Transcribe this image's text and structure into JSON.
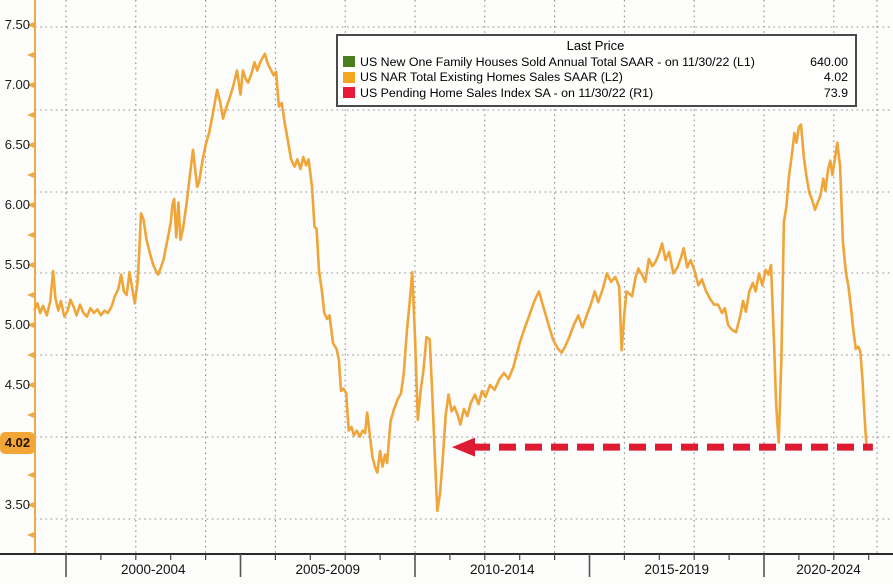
{
  "legend": {
    "title": "Last Price",
    "entries": [
      {
        "label": "US New One Family Houses Sold Annual Total SAAR -  on 11/30/22  (L1)",
        "value": "640.00",
        "color": "#4a7d1d"
      },
      {
        "label": "US NAR Total Existing Homes Sales SAAR  (L2)",
        "value": "4.02",
        "color": "#f2a71e"
      },
      {
        "label": "US Pending Home Sales Index SA -  on 11/30/22  (R1)",
        "value": "73.9",
        "color": "#e9173a"
      }
    ]
  },
  "y_axis": {
    "labels": [
      {
        "text": "7.50",
        "v": 7.5
      },
      {
        "text": "7.00",
        "v": 7.0
      },
      {
        "text": "6.50",
        "v": 6.5
      },
      {
        "text": "6.00",
        "v": 6.0
      },
      {
        "text": "5.50",
        "v": 5.5
      },
      {
        "text": "5.00",
        "v": 5.0
      },
      {
        "text": "4.50",
        "v": 4.5
      },
      {
        "text": "3.50",
        "v": 3.5
      }
    ],
    "last_price_badge": {
      "text": "4.02",
      "v": 4.02
    }
  },
  "x_axis": {
    "groups": [
      {
        "text": "2000-2004",
        "start": 2000,
        "end": 2005
      },
      {
        "text": "2005-2009",
        "start": 2005,
        "end": 2010
      },
      {
        "text": "2010-2014",
        "start": 2010,
        "end": 2015
      },
      {
        "text": "2015-2019",
        "start": 2015,
        "end": 2020
      },
      {
        "text": "2020-2024",
        "start": 2020,
        "end": 2025
      }
    ]
  },
  "chart_data": {
    "type": "line",
    "title": "",
    "x_range": [
      1999.05,
      2023.7
    ],
    "left_axis_range": [
      3.25,
      7.75
    ],
    "grid": true,
    "legend_position": "top",
    "series": [
      {
        "name": "US NAR Total Existing Homes Sales SAAR (L2)",
        "axis": "L2",
        "color": "#f0a539",
        "last_value": 4.02,
        "points": [
          [
            1999.1,
            5.13
          ],
          [
            1999.18,
            5.18
          ],
          [
            1999.26,
            5.1
          ],
          [
            1999.34,
            5.16
          ],
          [
            1999.45,
            5.08
          ],
          [
            1999.55,
            5.2
          ],
          [
            1999.63,
            5.45
          ],
          [
            1999.7,
            5.22
          ],
          [
            1999.78,
            5.12
          ],
          [
            1999.85,
            5.2
          ],
          [
            1999.95,
            5.07
          ],
          [
            2000.05,
            5.12
          ],
          [
            2000.13,
            5.21
          ],
          [
            2000.22,
            5.15
          ],
          [
            2000.3,
            5.08
          ],
          [
            2000.4,
            5.17
          ],
          [
            2000.5,
            5.1
          ],
          [
            2000.6,
            5.07
          ],
          [
            2000.7,
            5.14
          ],
          [
            2000.8,
            5.1
          ],
          [
            2000.9,
            5.13
          ],
          [
            2001.0,
            5.08
          ],
          [
            2001.1,
            5.12
          ],
          [
            2001.2,
            5.1
          ],
          [
            2001.3,
            5.15
          ],
          [
            2001.4,
            5.24
          ],
          [
            2001.5,
            5.3
          ],
          [
            2001.58,
            5.42
          ],
          [
            2001.66,
            5.28
          ],
          [
            2001.74,
            5.25
          ],
          [
            2001.82,
            5.44
          ],
          [
            2001.9,
            5.3
          ],
          [
            2001.97,
            5.18
          ],
          [
            2002.05,
            5.35
          ],
          [
            2002.1,
            5.62
          ],
          [
            2002.15,
            5.93
          ],
          [
            2002.22,
            5.88
          ],
          [
            2002.3,
            5.72
          ],
          [
            2002.4,
            5.6
          ],
          [
            2002.5,
            5.5
          ],
          [
            2002.58,
            5.45
          ],
          [
            2002.64,
            5.42
          ],
          [
            2002.72,
            5.48
          ],
          [
            2002.8,
            5.55
          ],
          [
            2002.9,
            5.7
          ],
          [
            2003.0,
            5.85
          ],
          [
            2003.05,
            6.0
          ],
          [
            2003.1,
            6.05
          ],
          [
            2003.16,
            5.73
          ],
          [
            2003.22,
            6.02
          ],
          [
            2003.28,
            5.71
          ],
          [
            2003.35,
            5.8
          ],
          [
            2003.45,
            6.0
          ],
          [
            2003.55,
            6.25
          ],
          [
            2003.64,
            6.46
          ],
          [
            2003.7,
            6.3
          ],
          [
            2003.76,
            6.15
          ],
          [
            2003.82,
            6.2
          ],
          [
            2003.9,
            6.35
          ],
          [
            2004.0,
            6.5
          ],
          [
            2004.1,
            6.6
          ],
          [
            2004.2,
            6.75
          ],
          [
            2004.33,
            6.96
          ],
          [
            2004.42,
            6.85
          ],
          [
            2004.5,
            6.72
          ],
          [
            2004.58,
            6.8
          ],
          [
            2004.7,
            6.9
          ],
          [
            2004.8,
            7.0
          ],
          [
            2004.9,
            7.12
          ],
          [
            2005.0,
            6.92
          ],
          [
            2005.07,
            7.12
          ],
          [
            2005.15,
            7.05
          ],
          [
            2005.22,
            7.02
          ],
          [
            2005.32,
            7.1
          ],
          [
            2005.4,
            7.19
          ],
          [
            2005.48,
            7.12
          ],
          [
            2005.55,
            7.18
          ],
          [
            2005.62,
            7.22
          ],
          [
            2005.7,
            7.26
          ],
          [
            2005.78,
            7.18
          ],
          [
            2005.88,
            7.12
          ],
          [
            2005.95,
            7.08
          ],
          [
            2006.02,
            7.11
          ],
          [
            2006.1,
            6.82
          ],
          [
            2006.18,
            6.85
          ],
          [
            2006.27,
            6.68
          ],
          [
            2006.35,
            6.55
          ],
          [
            2006.45,
            6.38
          ],
          [
            2006.55,
            6.32
          ],
          [
            2006.63,
            6.38
          ],
          [
            2006.72,
            6.3
          ],
          [
            2006.8,
            6.4
          ],
          [
            2006.88,
            6.33
          ],
          [
            2006.95,
            6.38
          ],
          [
            2007.05,
            6.15
          ],
          [
            2007.12,
            5.82
          ],
          [
            2007.18,
            5.8
          ],
          [
            2007.25,
            5.45
          ],
          [
            2007.33,
            5.29
          ],
          [
            2007.4,
            5.1
          ],
          [
            2007.48,
            5.05
          ],
          [
            2007.55,
            5.08
          ],
          [
            2007.65,
            4.85
          ],
          [
            2007.75,
            4.8
          ],
          [
            2007.82,
            4.71
          ],
          [
            2007.88,
            4.45
          ],
          [
            2007.95,
            4.47
          ],
          [
            2008.03,
            4.43
          ],
          [
            2008.1,
            4.12
          ],
          [
            2008.18,
            4.15
          ],
          [
            2008.25,
            4.08
          ],
          [
            2008.33,
            4.12
          ],
          [
            2008.42,
            4.07
          ],
          [
            2008.5,
            4.12
          ],
          [
            2008.57,
            4.1
          ],
          [
            2008.63,
            4.27
          ],
          [
            2008.7,
            4.1
          ],
          [
            2008.78,
            3.9
          ],
          [
            2008.85,
            3.82
          ],
          [
            2008.92,
            3.77
          ],
          [
            2009.0,
            3.95
          ],
          [
            2009.07,
            3.82
          ],
          [
            2009.14,
            3.92
          ],
          [
            2009.2,
            3.85
          ],
          [
            2009.3,
            4.2
          ],
          [
            2009.4,
            4.3
          ],
          [
            2009.5,
            4.38
          ],
          [
            2009.6,
            4.43
          ],
          [
            2009.68,
            4.6
          ],
          [
            2009.77,
            4.96
          ],
          [
            2009.85,
            5.2
          ],
          [
            2009.92,
            5.44
          ],
          [
            2010.0,
            4.9
          ],
          [
            2010.08,
            4.21
          ],
          [
            2010.16,
            4.45
          ],
          [
            2010.24,
            4.62
          ],
          [
            2010.33,
            4.9
          ],
          [
            2010.42,
            4.88
          ],
          [
            2010.5,
            4.4
          ],
          [
            2010.57,
            3.9
          ],
          [
            2010.64,
            3.45
          ],
          [
            2010.72,
            3.6
          ],
          [
            2010.8,
            3.9
          ],
          [
            2010.88,
            4.25
          ],
          [
            2010.96,
            4.42
          ],
          [
            2011.05,
            4.28
          ],
          [
            2011.13,
            4.32
          ],
          [
            2011.22,
            4.25
          ],
          [
            2011.3,
            4.17
          ],
          [
            2011.4,
            4.3
          ],
          [
            2011.5,
            4.24
          ],
          [
            2011.6,
            4.35
          ],
          [
            2011.72,
            4.42
          ],
          [
            2011.82,
            4.34
          ],
          [
            2011.92,
            4.45
          ],
          [
            2012.02,
            4.4
          ],
          [
            2012.15,
            4.5
          ],
          [
            2012.28,
            4.46
          ],
          [
            2012.42,
            4.55
          ],
          [
            2012.55,
            4.6
          ],
          [
            2012.68,
            4.55
          ],
          [
            2012.82,
            4.65
          ],
          [
            2013.0,
            4.85
          ],
          [
            2013.15,
            4.98
          ],
          [
            2013.3,
            5.1
          ],
          [
            2013.42,
            5.2
          ],
          [
            2013.55,
            5.28
          ],
          [
            2013.68,
            5.15
          ],
          [
            2013.8,
            5.03
          ],
          [
            2013.95,
            4.88
          ],
          [
            2014.1,
            4.8
          ],
          [
            2014.2,
            4.77
          ],
          [
            2014.3,
            4.82
          ],
          [
            2014.42,
            4.9
          ],
          [
            2014.55,
            5.0
          ],
          [
            2014.68,
            5.08
          ],
          [
            2014.8,
            4.98
          ],
          [
            2014.92,
            5.08
          ],
          [
            2015.05,
            5.18
          ],
          [
            2015.15,
            5.28
          ],
          [
            2015.25,
            5.19
          ],
          [
            2015.38,
            5.3
          ],
          [
            2015.5,
            5.43
          ],
          [
            2015.62,
            5.36
          ],
          [
            2015.74,
            5.4
          ],
          [
            2015.85,
            5.32
          ],
          [
            2015.92,
            4.79
          ],
          [
            2016.0,
            5.1
          ],
          [
            2016.06,
            5.28
          ],
          [
            2016.15,
            5.26
          ],
          [
            2016.22,
            5.24
          ],
          [
            2016.32,
            5.4
          ],
          [
            2016.4,
            5.47
          ],
          [
            2016.5,
            5.42
          ],
          [
            2016.6,
            5.36
          ],
          [
            2016.7,
            5.55
          ],
          [
            2016.8,
            5.49
          ],
          [
            2016.9,
            5.53
          ],
          [
            2017.0,
            5.6
          ],
          [
            2017.08,
            5.68
          ],
          [
            2017.18,
            5.54
          ],
          [
            2017.28,
            5.61
          ],
          [
            2017.4,
            5.43
          ],
          [
            2017.52,
            5.48
          ],
          [
            2017.62,
            5.56
          ],
          [
            2017.7,
            5.64
          ],
          [
            2017.8,
            5.48
          ],
          [
            2017.9,
            5.54
          ],
          [
            2018.0,
            5.46
          ],
          [
            2018.12,
            5.33
          ],
          [
            2018.22,
            5.38
          ],
          [
            2018.33,
            5.29
          ],
          [
            2018.45,
            5.22
          ],
          [
            2018.57,
            5.17
          ],
          [
            2018.68,
            5.17
          ],
          [
            2018.8,
            5.1
          ],
          [
            2018.88,
            5.14
          ],
          [
            2018.97,
            5.0
          ],
          [
            2019.08,
            4.96
          ],
          [
            2019.2,
            4.94
          ],
          [
            2019.32,
            5.08
          ],
          [
            2019.4,
            5.2
          ],
          [
            2019.48,
            5.11
          ],
          [
            2019.58,
            5.28
          ],
          [
            2019.68,
            5.35
          ],
          [
            2019.76,
            5.28
          ],
          [
            2019.86,
            5.43
          ],
          [
            2019.95,
            5.33
          ],
          [
            2020.05,
            5.46
          ],
          [
            2020.13,
            5.42
          ],
          [
            2020.2,
            5.5
          ],
          [
            2020.28,
            4.9
          ],
          [
            2020.35,
            4.33
          ],
          [
            2020.42,
            4.02
          ],
          [
            2020.5,
            4.72
          ],
          [
            2020.57,
            5.86
          ],
          [
            2020.64,
            5.98
          ],
          [
            2020.72,
            6.25
          ],
          [
            2020.8,
            6.42
          ],
          [
            2020.87,
            6.6
          ],
          [
            2020.93,
            6.52
          ],
          [
            2021.0,
            6.65
          ],
          [
            2021.06,
            6.67
          ],
          [
            2021.14,
            6.4
          ],
          [
            2021.22,
            6.23
          ],
          [
            2021.3,
            6.1
          ],
          [
            2021.38,
            6.04
          ],
          [
            2021.46,
            5.96
          ],
          [
            2021.54,
            6.02
          ],
          [
            2021.62,
            6.08
          ],
          [
            2021.7,
            6.22
          ],
          [
            2021.76,
            6.12
          ],
          [
            2021.84,
            6.3
          ],
          [
            2021.9,
            6.37
          ],
          [
            2021.96,
            6.25
          ],
          [
            2022.04,
            6.4
          ],
          [
            2022.1,
            6.52
          ],
          [
            2022.18,
            6.32
          ],
          [
            2022.26,
            5.69
          ],
          [
            2022.35,
            5.43
          ],
          [
            2022.42,
            5.32
          ],
          [
            2022.5,
            5.12
          ],
          [
            2022.56,
            4.96
          ],
          [
            2022.63,
            4.8
          ],
          [
            2022.7,
            4.82
          ],
          [
            2022.76,
            4.78
          ],
          [
            2022.82,
            4.56
          ],
          [
            2022.87,
            4.29
          ],
          [
            2022.91,
            4.1
          ],
          [
            2022.93,
            4.02
          ]
        ]
      },
      {
        "name": "US New One Family Houses Sold Annual Total SAAR (L1)",
        "axis": "L1",
        "color": "#4a7d1d",
        "last_value": 640.0,
        "points": []
      },
      {
        "name": "US Pending Home Sales Index SA (R1)",
        "axis": "R1",
        "color": "#e9173a",
        "last_value": 73.9,
        "points": []
      }
    ],
    "annotation": {
      "type": "dashed-arrow-left",
      "at_value": 4.02,
      "from_year": 2023.12,
      "to_year": 2011.06,
      "color": "#de1b32"
    }
  }
}
